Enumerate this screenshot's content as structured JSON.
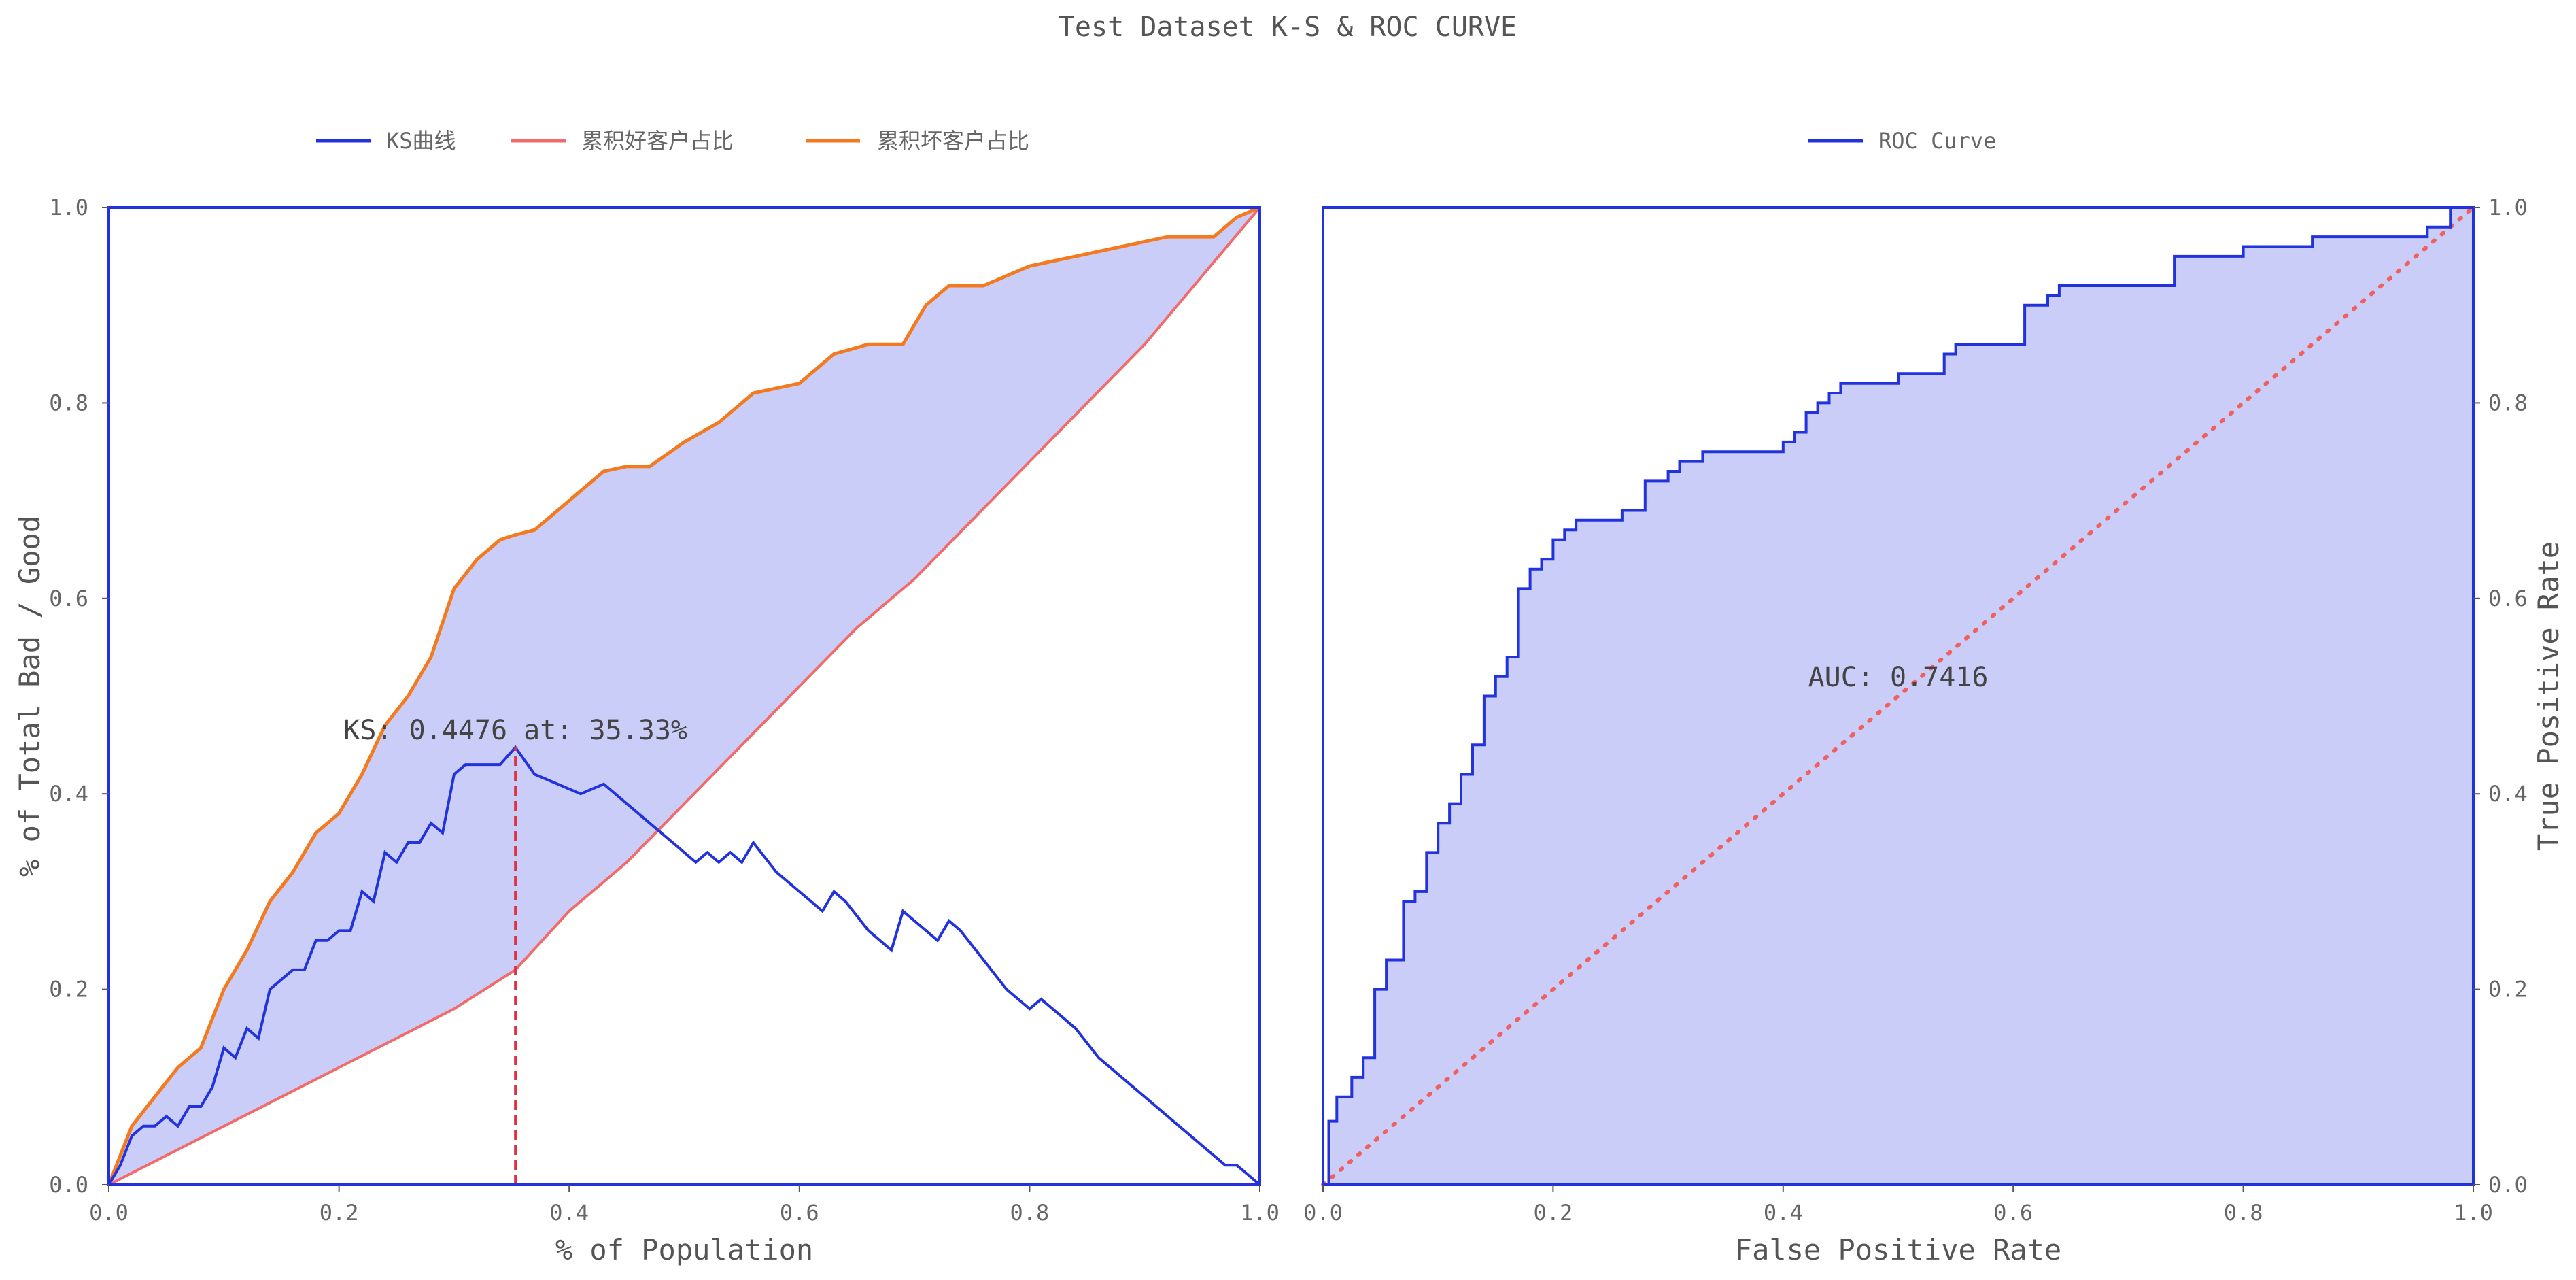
{
  "suptitle": "Test Dataset K-S & ROC CURVE",
  "colors": {
    "ks": "#2233dd",
    "good": "#f26b6b",
    "bad": "#f47a1f",
    "fill": "#c9cdf7",
    "vline": "#dd3344",
    "diag": "#f06060",
    "axis": "#2233dd"
  },
  "chart_data": [
    {
      "type": "line",
      "name": "ks-panel",
      "xlabel": "% of Population",
      "ylabel": "% of Total Bad / Good",
      "xlim": [
        0.0,
        1.0
      ],
      "ylim": [
        0.0,
        1.0
      ],
      "xticks": [
        "0.0",
        "0.2",
        "0.4",
        "0.6",
        "0.8",
        "1.0"
      ],
      "yticks": [
        "0.0",
        "0.2",
        "0.4",
        "0.6",
        "0.8",
        "1.0"
      ],
      "legend_position": "top-center",
      "grid": false,
      "fill_between": [
        "累积好客户占比",
        "累积坏客户占比"
      ],
      "annotation": {
        "text": "KS: 0.4476  at: 35.33%",
        "x": 0.3533,
        "y": 0.4476
      },
      "series": [
        {
          "name": "KS曲线",
          "x": [
            0,
            0.01,
            0.02,
            0.03,
            0.04,
            0.05,
            0.06,
            0.07,
            0.08,
            0.09,
            0.1,
            0.11,
            0.12,
            0.13,
            0.14,
            0.15,
            0.16,
            0.17,
            0.18,
            0.19,
            0.2,
            0.21,
            0.22,
            0.23,
            0.24,
            0.25,
            0.26,
            0.27,
            0.28,
            0.29,
            0.3,
            0.31,
            0.32,
            0.33,
            0.34,
            0.3533,
            0.37,
            0.39,
            0.41,
            0.43,
            0.45,
            0.47,
            0.49,
            0.5,
            0.51,
            0.52,
            0.53,
            0.54,
            0.55,
            0.56,
            0.58,
            0.6,
            0.62,
            0.63,
            0.64,
            0.66,
            0.68,
            0.69,
            0.7,
            0.72,
            0.73,
            0.74,
            0.76,
            0.78,
            0.8,
            0.81,
            0.83,
            0.84,
            0.86,
            0.88,
            0.89,
            0.91,
            0.93,
            0.95,
            0.97,
            0.98,
            0.99,
            1.0
          ],
          "values": [
            0,
            0.02,
            0.05,
            0.06,
            0.06,
            0.07,
            0.06,
            0.08,
            0.08,
            0.1,
            0.14,
            0.13,
            0.16,
            0.15,
            0.2,
            0.21,
            0.22,
            0.22,
            0.25,
            0.25,
            0.26,
            0.26,
            0.3,
            0.29,
            0.34,
            0.33,
            0.35,
            0.35,
            0.37,
            0.36,
            0.42,
            0.43,
            0.43,
            0.43,
            0.43,
            0.4476,
            0.42,
            0.41,
            0.4,
            0.41,
            0.39,
            0.37,
            0.35,
            0.34,
            0.33,
            0.34,
            0.33,
            0.34,
            0.33,
            0.35,
            0.32,
            0.3,
            0.28,
            0.3,
            0.29,
            0.26,
            0.24,
            0.28,
            0.27,
            0.25,
            0.27,
            0.26,
            0.23,
            0.2,
            0.18,
            0.19,
            0.17,
            0.16,
            0.13,
            0.11,
            0.1,
            0.08,
            0.06,
            0.04,
            0.02,
            0.02,
            0.01,
            0.0
          ]
        },
        {
          "name": "累积好客户占比",
          "x": [
            0,
            0.05,
            0.1,
            0.15,
            0.2,
            0.25,
            0.3,
            0.3533,
            0.4,
            0.45,
            0.5,
            0.55,
            0.6,
            0.65,
            0.7,
            0.75,
            0.8,
            0.85,
            0.9,
            0.95,
            1.0
          ],
          "values": [
            0,
            0.03,
            0.06,
            0.09,
            0.12,
            0.15,
            0.18,
            0.22,
            0.28,
            0.33,
            0.39,
            0.45,
            0.51,
            0.57,
            0.62,
            0.68,
            0.74,
            0.8,
            0.86,
            0.93,
            1.0
          ]
        },
        {
          "name": "累积坏客户占比",
          "x": [
            0,
            0.02,
            0.04,
            0.06,
            0.08,
            0.1,
            0.12,
            0.14,
            0.16,
            0.18,
            0.2,
            0.22,
            0.24,
            0.26,
            0.28,
            0.3,
            0.32,
            0.34,
            0.3533,
            0.37,
            0.39,
            0.41,
            0.43,
            0.45,
            0.47,
            0.5,
            0.53,
            0.56,
            0.6,
            0.63,
            0.66,
            0.69,
            0.71,
            0.73,
            0.76,
            0.8,
            0.84,
            0.88,
            0.92,
            0.96,
            0.98,
            1.0
          ],
          "values": [
            0,
            0.06,
            0.09,
            0.12,
            0.14,
            0.2,
            0.24,
            0.29,
            0.32,
            0.36,
            0.38,
            0.42,
            0.47,
            0.5,
            0.54,
            0.61,
            0.64,
            0.66,
            0.665,
            0.67,
            0.69,
            0.71,
            0.73,
            0.735,
            0.735,
            0.76,
            0.78,
            0.81,
            0.82,
            0.85,
            0.86,
            0.86,
            0.9,
            0.92,
            0.92,
            0.94,
            0.95,
            0.96,
            0.97,
            0.97,
            0.99,
            1.0
          ]
        }
      ]
    },
    {
      "type": "line",
      "name": "roc-panel",
      "xlabel": "False Positive Rate",
      "ylabel": "True Positive Rate",
      "xlim": [
        0.0,
        1.0
      ],
      "ylim": [
        0.0,
        1.0
      ],
      "xticks": [
        "0.0",
        "0.2",
        "0.4",
        "0.6",
        "0.8",
        "1.0"
      ],
      "yticks": [
        "0.0",
        "0.2",
        "0.4",
        "0.6",
        "0.8",
        "1.0"
      ],
      "legend_position": "top-center",
      "grid": false,
      "annotation": {
        "text": "AUC: 0.7416",
        "x": 0.5,
        "y": 0.51
      },
      "series": [
        {
          "name": "ROC Curve",
          "x": [
            0,
            0.005,
            0.005,
            0.012,
            0.012,
            0.025,
            0.025,
            0.035,
            0.035,
            0.045,
            0.045,
            0.055,
            0.055,
            0.07,
            0.07,
            0.08,
            0.08,
            0.09,
            0.09,
            0.1,
            0.1,
            0.11,
            0.11,
            0.12,
            0.12,
            0.13,
            0.13,
            0.14,
            0.14,
            0.15,
            0.15,
            0.16,
            0.16,
            0.17,
            0.17,
            0.18,
            0.18,
            0.19,
            0.19,
            0.2,
            0.2,
            0.21,
            0.21,
            0.22,
            0.22,
            0.26,
            0.26,
            0.28,
            0.28,
            0.3,
            0.3,
            0.31,
            0.31,
            0.33,
            0.33,
            0.4,
            0.4,
            0.41,
            0.41,
            0.42,
            0.42,
            0.43,
            0.43,
            0.44,
            0.44,
            0.45,
            0.45,
            0.5,
            0.5,
            0.54,
            0.54,
            0.55,
            0.55,
            0.61,
            0.61,
            0.63,
            0.63,
            0.64,
            0.64,
            0.74,
            0.74,
            0.8,
            0.8,
            0.86,
            0.86,
            0.96,
            0.96,
            0.98,
            0.98,
            1.0
          ],
          "values": [
            0,
            0,
            0.065,
            0.065,
            0.09,
            0.09,
            0.11,
            0.11,
            0.13,
            0.13,
            0.2,
            0.2,
            0.23,
            0.23,
            0.29,
            0.29,
            0.3,
            0.3,
            0.34,
            0.34,
            0.37,
            0.37,
            0.39,
            0.39,
            0.42,
            0.42,
            0.45,
            0.45,
            0.5,
            0.5,
            0.52,
            0.52,
            0.54,
            0.54,
            0.61,
            0.61,
            0.63,
            0.63,
            0.64,
            0.64,
            0.66,
            0.66,
            0.67,
            0.67,
            0.68,
            0.68,
            0.69,
            0.69,
            0.72,
            0.72,
            0.73,
            0.73,
            0.74,
            0.74,
            0.75,
            0.75,
            0.76,
            0.76,
            0.77,
            0.77,
            0.79,
            0.79,
            0.8,
            0.8,
            0.81,
            0.81,
            0.82,
            0.82,
            0.83,
            0.83,
            0.85,
            0.85,
            0.86,
            0.86,
            0.9,
            0.9,
            0.91,
            0.91,
            0.92,
            0.92,
            0.95,
            0.95,
            0.96,
            0.96,
            0.97,
            0.97,
            0.98,
            0.98,
            1.0,
            1.0
          ]
        },
        {
          "name": "",
          "x": [
            0,
            1
          ],
          "values": [
            0,
            1
          ]
        }
      ]
    }
  ]
}
